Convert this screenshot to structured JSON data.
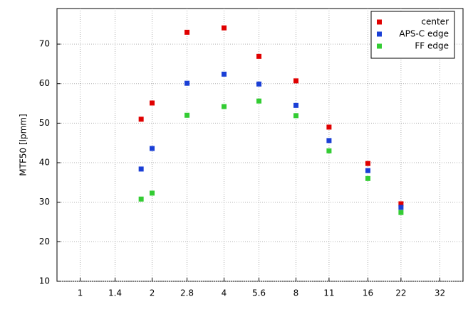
{
  "chart_data": {
    "type": "scatter",
    "y_label": "MTF50 [lpmm]",
    "xscale": "log",
    "xlim": [
      0.8,
      40
    ],
    "xticks": [
      1,
      1.4,
      2,
      2.8,
      4,
      5.6,
      8,
      11,
      16,
      22,
      32
    ],
    "ylim": [
      10,
      79
    ],
    "yticks": [
      10,
      20,
      30,
      40,
      50,
      60,
      70
    ],
    "grid": true,
    "legend": "top-right",
    "series": [
      {
        "name": "center",
        "color": "#e00000",
        "x": [
          1.8,
          2,
          2.8,
          4,
          5.6,
          8,
          11,
          16,
          22
        ],
        "values": [
          51.0,
          55.1,
          73.0,
          74.1,
          66.9,
          60.7,
          49.0,
          39.8,
          29.6
        ]
      },
      {
        "name": "APS-C edge",
        "color": "#1a3fd6",
        "x": [
          1.8,
          2,
          2.8,
          4,
          5.6,
          8,
          11,
          16,
          22
        ],
        "values": [
          38.4,
          43.6,
          60.1,
          62.4,
          59.9,
          54.5,
          45.6,
          38.0,
          28.7
        ]
      },
      {
        "name": "FF edge",
        "color": "#33cc33",
        "x": [
          1.8,
          2,
          2.8,
          4,
          5.6,
          8,
          11,
          16,
          22
        ],
        "values": [
          30.8,
          32.3,
          52.0,
          54.2,
          55.6,
          51.9,
          43.0,
          36.0,
          27.4
        ]
      }
    ]
  }
}
